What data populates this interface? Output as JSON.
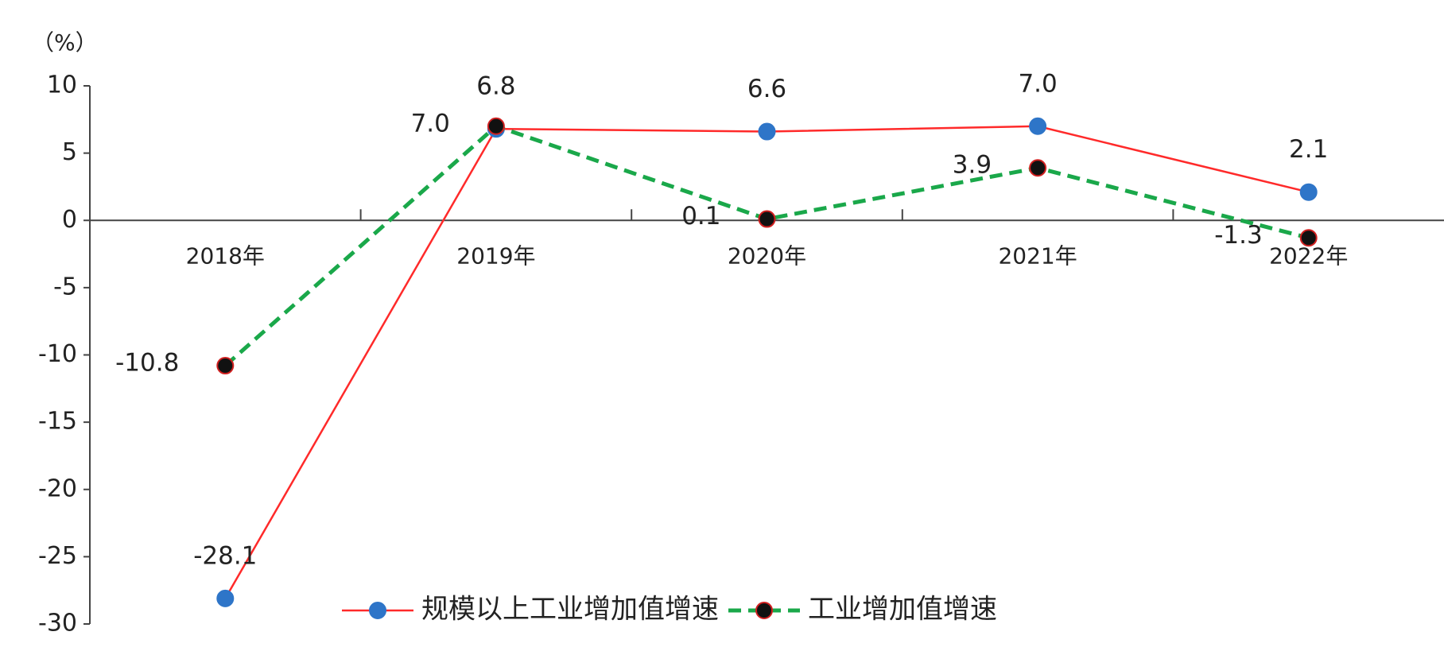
{
  "chart_data": {
    "type": "line",
    "y_unit": "（%）",
    "categories": [
      "2018年",
      "2019年",
      "2020年",
      "2021年",
      "2022年"
    ],
    "series": [
      {
        "name": "规模以上工业增加值增速",
        "color": "#ff2a2a",
        "marker_color": "#2e75c8",
        "dashed": false,
        "values": [
          -28.1,
          6.8,
          6.6,
          7.0,
          2.1
        ],
        "value_labels": [
          "-28.1",
          "6.8",
          "6.6",
          "7.0",
          "2.1"
        ]
      },
      {
        "name": "工业增加值增速",
        "color": "#1aa84a",
        "marker_color": "#111111",
        "dashed": true,
        "values": [
          -10.8,
          7.0,
          0.1,
          3.9,
          -1.3
        ],
        "value_labels": [
          "-10.8",
          "7.0",
          "0.1",
          "3.9",
          "-1.3"
        ]
      }
    ],
    "ylim": [
      -30,
      10
    ],
    "yticks": [
      -30,
      -25,
      -20,
      -15,
      -10,
      -5,
      0,
      5,
      10
    ]
  }
}
